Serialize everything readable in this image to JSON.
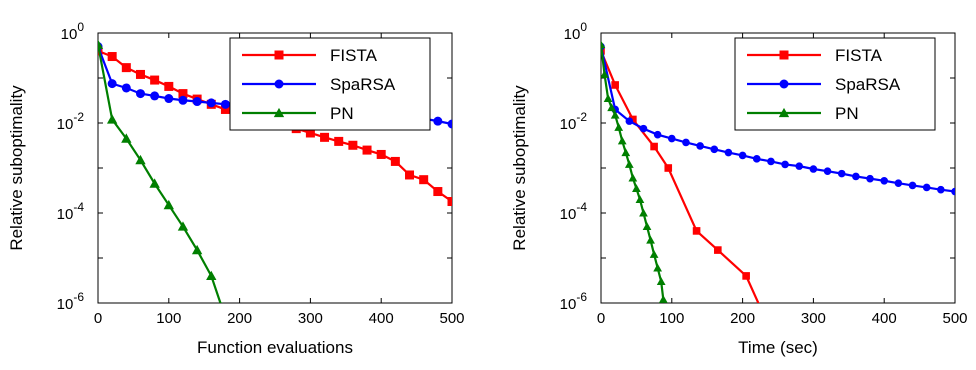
{
  "chart_data": [
    {
      "type": "line",
      "xlabel": "Function evaluations",
      "ylabel": "Relative suboptimality",
      "xlim": [
        0,
        500
      ],
      "ylim_log10": [
        -6,
        0
      ],
      "log_y": true,
      "xticks": [
        "0",
        "100",
        "200",
        "300",
        "400",
        "500"
      ],
      "yticks": [
        {
          "base": "10",
          "exp": "0"
        },
        {
          "base": "10",
          "exp": "-2"
        },
        {
          "base": "10",
          "exp": "-4"
        },
        {
          "base": "10",
          "exp": "-6"
        }
      ],
      "legend_position": "top-right",
      "series": [
        {
          "name": "FISTA",
          "color": "#ff0000",
          "marker": "square",
          "x": [
            0,
            20,
            40,
            60,
            80,
            100,
            120,
            140,
            160,
            180,
            200,
            220,
            240,
            260,
            280,
            300,
            320,
            340,
            360,
            380,
            400,
            420,
            440,
            460,
            480,
            500
          ],
          "y": [
            0.4,
            0.3,
            0.17,
            0.12,
            0.09,
            0.065,
            0.045,
            0.034,
            0.026,
            0.02,
            0.016,
            0.013,
            0.011,
            0.009,
            0.0075,
            0.006,
            0.0048,
            0.0039,
            0.0032,
            0.0025,
            0.002,
            0.0014,
            0.0007,
            0.00055,
            0.0003,
            0.00018
          ]
        },
        {
          "name": "SpaRSA",
          "color": "#0000ff",
          "marker": "circle",
          "x": [
            0,
            20,
            40,
            60,
            80,
            100,
            120,
            140,
            160,
            180,
            200,
            220,
            240,
            260,
            280,
            300,
            320,
            340,
            360,
            380,
            400,
            420,
            440,
            460,
            480,
            500
          ],
          "y": [
            0.5,
            0.075,
            0.06,
            0.045,
            0.04,
            0.035,
            0.032,
            0.03,
            0.028,
            0.026,
            0.025,
            0.024,
            0.023,
            0.022,
            0.021,
            0.02,
            0.019,
            0.018,
            0.017,
            0.016,
            0.015,
            0.014,
            0.013,
            0.0125,
            0.011,
            0.0095
          ]
        },
        {
          "name": "PN",
          "color": "#007f00",
          "marker": "triangle",
          "x": [
            0,
            20,
            40,
            60,
            80,
            100,
            120,
            140,
            160,
            175
          ],
          "y": [
            0.55,
            0.012,
            0.0045,
            0.0015,
            0.00045,
            0.00015,
            5e-05,
            1.5e-05,
            4e-06,
            8e-07
          ]
        }
      ]
    },
    {
      "type": "line",
      "xlabel": "Time (sec)",
      "ylabel": "Relative suboptimality",
      "xlim": [
        0,
        500
      ],
      "ylim_log10": [
        -6,
        0
      ],
      "log_y": true,
      "xticks": [
        "0",
        "100",
        "200",
        "300",
        "400",
        "500"
      ],
      "yticks": [
        {
          "base": "10",
          "exp": "0"
        },
        {
          "base": "10",
          "exp": "-2"
        },
        {
          "base": "10",
          "exp": "-4"
        },
        {
          "base": "10",
          "exp": "-6"
        }
      ],
      "legend_position": "top-right",
      "series": [
        {
          "name": "FISTA",
          "color": "#ff0000",
          "marker": "square",
          "x": [
            0,
            20,
            45,
            75,
            95,
            135,
            165,
            205,
            225
          ],
          "y": [
            0.4,
            0.07,
            0.012,
            0.003,
            0.001,
            4e-05,
            1.5e-05,
            4e-06,
            8e-07
          ]
        },
        {
          "name": "SpaRSA",
          "color": "#0000ff",
          "marker": "circle",
          "x": [
            0,
            20,
            40,
            60,
            80,
            100,
            120,
            140,
            160,
            180,
            200,
            220,
            240,
            260,
            280,
            300,
            320,
            340,
            360,
            380,
            400,
            420,
            440,
            460,
            480,
            500
          ],
          "y": [
            0.5,
            0.02,
            0.011,
            0.0075,
            0.0055,
            0.0045,
            0.0037,
            0.0031,
            0.0026,
            0.0022,
            0.0019,
            0.0016,
            0.0014,
            0.0012,
            0.0011,
            0.00095,
            0.00085,
            0.00075,
            0.00065,
            0.00058,
            0.00052,
            0.00046,
            0.00041,
            0.00037,
            0.00033,
            0.0003
          ]
        },
        {
          "name": "PN",
          "color": "#007f00",
          "marker": "triangle",
          "x": [
            0,
            5,
            10,
            15,
            20,
            25,
            30,
            35,
            40,
            45,
            50,
            55,
            60,
            65,
            70,
            75,
            80,
            85,
            88
          ],
          "y": [
            0.55,
            0.12,
            0.035,
            0.022,
            0.015,
            0.008,
            0.004,
            0.0022,
            0.0012,
            0.0006,
            0.00035,
            0.0002,
            0.0001,
            5e-05,
            2.5e-05,
            1.2e-05,
            6e-06,
            3e-06,
            1.2e-06
          ]
        }
      ]
    }
  ]
}
